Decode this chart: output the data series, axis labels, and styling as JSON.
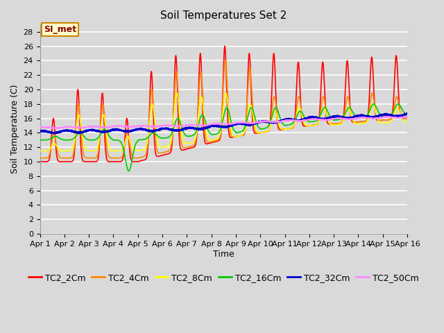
{
  "title": "Soil Temperatures Set 2",
  "xlabel": "Time",
  "ylabel": "Soil Temperature (C)",
  "ylim": [
    0,
    29
  ],
  "yticks": [
    0,
    2,
    4,
    6,
    8,
    10,
    12,
    14,
    16,
    18,
    20,
    22,
    24,
    26,
    28
  ],
  "xtick_labels": [
    "Apr 1",
    "Apr 2",
    "Apr 3",
    "Apr 4",
    "Apr 5",
    "Apr 6",
    "Apr 7",
    "Apr 8",
    "Apr 9",
    "Apr 10",
    "Apr 11",
    "Apr 12",
    "Apr 13",
    "Apr 14",
    "Apr 15",
    "Apr 16"
  ],
  "series_colors": [
    "#ff0000",
    "#ff8800",
    "#ffff00",
    "#00cc00",
    "#0000cc",
    "#ff88ff"
  ],
  "series_names": [
    "TC2_2Cm",
    "TC2_4Cm",
    "TC2_8Cm",
    "TC2_16Cm",
    "TC2_32Cm",
    "TC2_50Cm"
  ],
  "background_color": "#d9d9d9",
  "plot_bg_color": "#d9d9d9",
  "grid_color": "#ffffff",
  "annotation_text": "SI_met",
  "annotation_bg": "#ffffcc",
  "annotation_border": "#cc8800",
  "annotation_text_color": "#880000",
  "title_fontsize": 11,
  "axis_fontsize": 9,
  "tick_fontsize": 8,
  "legend_fontsize": 9,
  "figsize": [
    6.4,
    4.8
  ],
  "dpi": 100
}
